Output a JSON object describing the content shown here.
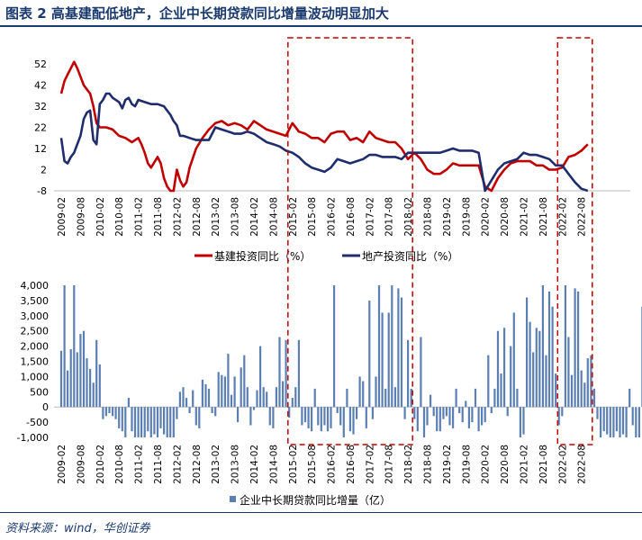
{
  "title": "图表 2   高基建配低地产，企业中长期贷款同比增量波动明显加大",
  "source": "资料来源：wind，华创证券",
  "colors": {
    "title": "#1a3a6e",
    "infra": "#c00000",
    "property": "#1f2d6e",
    "bars": "#5b7fb2",
    "highlight_box": "#c00000"
  },
  "chart_data": [
    {
      "type": "line",
      "title": "",
      "ylim": [
        -8,
        58
      ],
      "yticks": [
        -8,
        2,
        12,
        22,
        32,
        42,
        52
      ],
      "x_tick_labels": [
        "2009-02",
        "2009-08",
        "2010-02",
        "2010-08",
        "2011-02",
        "2011-08",
        "2012-02",
        "2012-08",
        "2013-02",
        "2013-08",
        "2014-02",
        "2014-08",
        "2015-02",
        "2015-08",
        "2016-02",
        "2016-08",
        "2017-02",
        "2017-08",
        "2018-02",
        "2018-08",
        "2019-02",
        "2019-08",
        "2020-02",
        "2020-08",
        "2021-02",
        "2021-08",
        "2022-02",
        "2022-08"
      ],
      "highlight_ranges": [
        [
          "2015-02",
          "2018-02"
        ],
        [
          "2022-02",
          "2022-10"
        ]
      ],
      "series": [
        {
          "name": "基建投资同比（%）",
          "points": [
            [
              "2009-02",
              38
            ],
            [
              "2009-03",
              44
            ],
            [
              "2009-04",
              47
            ],
            [
              "2009-05",
              50
            ],
            [
              "2009-06",
              53
            ],
            [
              "2009-07",
              50
            ],
            [
              "2009-08",
              46
            ],
            [
              "2009-09",
              42
            ],
            [
              "2009-10",
              40
            ],
            [
              "2009-11",
              38
            ],
            [
              "2009-12",
              32
            ],
            [
              "2010-01",
              24
            ],
            [
              "2010-02",
              22
            ],
            [
              "2010-04",
              22
            ],
            [
              "2010-06",
              21
            ],
            [
              "2010-08",
              18
            ],
            [
              "2010-10",
              17
            ],
            [
              "2010-12",
              15
            ],
            [
              "2011-02",
              17
            ],
            [
              "2011-03",
              14
            ],
            [
              "2011-04",
              10
            ],
            [
              "2011-05",
              5
            ],
            [
              "2011-06",
              3
            ],
            [
              "2011-08",
              8
            ],
            [
              "2011-09",
              5
            ],
            [
              "2011-10",
              -2
            ],
            [
              "2011-11",
              -6
            ],
            [
              "2011-12",
              -8
            ],
            [
              "2012-01",
              -8
            ],
            [
              "2012-02",
              2
            ],
            [
              "2012-03",
              -3
            ],
            [
              "2012-04",
              -6
            ],
            [
              "2012-05",
              -4
            ],
            [
              "2012-06",
              3
            ],
            [
              "2012-08",
              12
            ],
            [
              "2012-10",
              17
            ],
            [
              "2012-12",
              21
            ],
            [
              "2013-02",
              24
            ],
            [
              "2013-04",
              25
            ],
            [
              "2013-06",
              23
            ],
            [
              "2013-08",
              24
            ],
            [
              "2013-10",
              23
            ],
            [
              "2013-12",
              21
            ],
            [
              "2014-02",
              25
            ],
            [
              "2014-04",
              23
            ],
            [
              "2014-06",
              21
            ],
            [
              "2014-08",
              20
            ],
            [
              "2014-10",
              19
            ],
            [
              "2014-12",
              18
            ],
            [
              "2015-02",
              24
            ],
            [
              "2015-04",
              20
            ],
            [
              "2015-06",
              19
            ],
            [
              "2015-08",
              17
            ],
            [
              "2015-10",
              17
            ],
            [
              "2015-12",
              15
            ],
            [
              "2016-02",
              19
            ],
            [
              "2016-04",
              20
            ],
            [
              "2016-06",
              20
            ],
            [
              "2016-08",
              16
            ],
            [
              "2016-10",
              17
            ],
            [
              "2016-12",
              15
            ],
            [
              "2017-02",
              20
            ],
            [
              "2017-04",
              17
            ],
            [
              "2017-06",
              16
            ],
            [
              "2017-08",
              15
            ],
            [
              "2017-10",
              15
            ],
            [
              "2017-12",
              12
            ],
            [
              "2018-02",
              7
            ],
            [
              "2018-04",
              10
            ],
            [
              "2018-06",
              7
            ],
            [
              "2018-08",
              2
            ],
            [
              "2018-10",
              0
            ],
            [
              "2018-12",
              0
            ],
            [
              "2019-02",
              2
            ],
            [
              "2019-04",
              5
            ],
            [
              "2019-06",
              4
            ],
            [
              "2019-08",
              4
            ],
            [
              "2019-10",
              4
            ],
            [
              "2019-12",
              4
            ],
            [
              "2020-02",
              -6
            ],
            [
              "2020-04",
              -8
            ],
            [
              "2020-06",
              -2
            ],
            [
              "2020-08",
              2
            ],
            [
              "2020-10",
              5
            ],
            [
              "2020-12",
              6
            ],
            [
              "2021-02",
              6
            ],
            [
              "2021-04",
              6
            ],
            [
              "2021-06",
              4
            ],
            [
              "2021-08",
              4
            ],
            [
              "2021-10",
              2
            ],
            [
              "2021-12",
              2
            ],
            [
              "2022-02",
              3
            ],
            [
              "2022-04",
              8
            ],
            [
              "2022-06",
              9
            ],
            [
              "2022-08",
              11
            ],
            [
              "2022-10",
              14
            ]
          ]
        },
        {
          "name": "地产投资同比（%）",
          "points": [
            [
              "2009-02",
              17
            ],
            [
              "2009-03",
              6
            ],
            [
              "2009-04",
              5
            ],
            [
              "2009-05",
              8
            ],
            [
              "2009-06",
              10
            ],
            [
              "2009-07",
              14
            ],
            [
              "2009-08",
              18
            ],
            [
              "2009-09",
              26
            ],
            [
              "2009-10",
              29
            ],
            [
              "2009-11",
              30
            ],
            [
              "2009-12",
              16
            ],
            [
              "2010-01",
              14
            ],
            [
              "2010-02",
              33
            ],
            [
              "2010-03",
              35
            ],
            [
              "2010-04",
              38
            ],
            [
              "2010-05",
              38
            ],
            [
              "2010-06",
              36
            ],
            [
              "2010-08",
              34
            ],
            [
              "2010-09",
              31
            ],
            [
              "2010-10",
              35
            ],
            [
              "2010-11",
              36
            ],
            [
              "2010-12",
              33
            ],
            [
              "2011-01",
              32
            ],
            [
              "2011-02",
              35
            ],
            [
              "2011-04",
              34
            ],
            [
              "2011-06",
              33
            ],
            [
              "2011-08",
              33
            ],
            [
              "2011-10",
              32
            ],
            [
              "2011-12",
              28
            ],
            [
              "2012-01",
              25
            ],
            [
              "2012-02",
              23
            ],
            [
              "2012-03",
              18
            ],
            [
              "2012-04",
              18
            ],
            [
              "2012-06",
              17
            ],
            [
              "2012-08",
              16
            ],
            [
              "2012-10",
              16
            ],
            [
              "2012-12",
              16
            ],
            [
              "2013-02",
              22
            ],
            [
              "2013-04",
              21
            ],
            [
              "2013-06",
              20
            ],
            [
              "2013-08",
              19
            ],
            [
              "2013-10",
              19
            ],
            [
              "2013-12",
              20
            ],
            [
              "2014-02",
              19
            ],
            [
              "2014-04",
              17
            ],
            [
              "2014-06",
              15
            ],
            [
              "2014-08",
              14
            ],
            [
              "2014-10",
              13
            ],
            [
              "2014-12",
              11
            ],
            [
              "2015-02",
              10
            ],
            [
              "2015-04",
              8
            ],
            [
              "2015-06",
              5
            ],
            [
              "2015-08",
              3
            ],
            [
              "2015-10",
              2
            ],
            [
              "2015-12",
              1
            ],
            [
              "2016-02",
              3
            ],
            [
              "2016-04",
              7
            ],
            [
              "2016-06",
              6
            ],
            [
              "2016-08",
              5
            ],
            [
              "2016-10",
              6
            ],
            [
              "2016-12",
              7
            ],
            [
              "2017-02",
              9
            ],
            [
              "2017-04",
              9
            ],
            [
              "2017-06",
              8
            ],
            [
              "2017-08",
              8
            ],
            [
              "2017-10",
              8
            ],
            [
              "2017-12",
              7
            ],
            [
              "2018-02",
              10
            ],
            [
              "2018-04",
              10
            ],
            [
              "2018-06",
              10
            ],
            [
              "2018-08",
              10
            ],
            [
              "2018-10",
              10
            ],
            [
              "2018-12",
              10
            ],
            [
              "2019-02",
              11
            ],
            [
              "2019-04",
              12
            ],
            [
              "2019-06",
              11
            ],
            [
              "2019-08",
              11
            ],
            [
              "2019-10",
              11
            ],
            [
              "2019-12",
              10
            ],
            [
              "2020-02",
              -8
            ],
            [
              "2020-04",
              -3
            ],
            [
              "2020-06",
              2
            ],
            [
              "2020-08",
              5
            ],
            [
              "2020-10",
              6
            ],
            [
              "2020-12",
              7
            ],
            [
              "2021-02",
              10
            ],
            [
              "2021-04",
              9
            ],
            [
              "2021-06",
              9
            ],
            [
              "2021-08",
              8
            ],
            [
              "2021-10",
              7
            ],
            [
              "2021-12",
              4
            ],
            [
              "2022-02",
              4
            ],
            [
              "2022-04",
              0
            ],
            [
              "2022-06",
              -4
            ],
            [
              "2022-08",
              -7
            ],
            [
              "2022-10",
              -8
            ]
          ]
        }
      ]
    },
    {
      "type": "bar",
      "title": "",
      "ylim": [
        -1000,
        4000
      ],
      "yticks": [
        -1000,
        -500,
        0,
        500,
        1000,
        1500,
        2000,
        2500,
        3000,
        3500,
        4000
      ],
      "ytick_labels": [
        "-1,000",
        "-500",
        "0",
        "500",
        "1,000",
        "1,500",
        "2,000",
        "2,500",
        "3,000",
        "3,500",
        "4,000"
      ],
      "x_tick_labels": [
        "2009-02",
        "2009-08",
        "2010-02",
        "2010-08",
        "2011-02",
        "2011-08",
        "2012-02",
        "2012-08",
        "2013-02",
        "2013-08",
        "2014-02",
        "2014-08",
        "2015-02",
        "2015-08",
        "2016-02",
        "2016-08",
        "2017-02",
        "2017-08",
        "2018-02",
        "2018-08",
        "2019-02",
        "2019-08",
        "2020-02",
        "2020-08",
        "2021-02",
        "2021-08",
        "2022-02",
        "2022-08"
      ],
      "highlight_ranges": [
        [
          "2015-02",
          "2018-02"
        ],
        [
          "2022-02",
          "2022-10"
        ]
      ],
      "series": [
        {
          "name": "企业中长期贷款同比增量（亿）",
          "start": "2009-02",
          "values": [
            1850,
            4000,
            1200,
            1900,
            4000,
            1800,
            2400,
            2500,
            1600,
            1250,
            800,
            2200,
            1400,
            -400,
            -300,
            -200,
            -300,
            -400,
            -700,
            -800,
            -1000,
            300,
            -800,
            -1000,
            -1000,
            -1000,
            -1000,
            -800,
            -1000,
            -900,
            -1000,
            -700,
            -900,
            -1000,
            -1000,
            -1000,
            -400,
            500,
            650,
            300,
            -200,
            550,
            -600,
            -700,
            900,
            750,
            600,
            -200,
            -300,
            1150,
            1050,
            1000,
            1750,
            400,
            1000,
            -500,
            1300,
            1700,
            650,
            -600,
            -100,
            550,
            2000,
            650,
            500,
            -600,
            -700,
            650,
            2300,
            850,
            2200,
            -350,
            300,
            650,
            2200,
            -600,
            -500,
            -700,
            -800,
            600,
            -600,
            -800,
            -600,
            -800,
            -700,
            4000,
            -200,
            -600,
            -1000,
            600,
            -800,
            -900,
            -400,
            1000,
            850,
            -700,
            3500,
            -400,
            1000,
            4000,
            3100,
            600,
            3100,
            4000,
            650,
            3900,
            3600,
            -400,
            2200,
            600,
            -400,
            -800,
            2300,
            -1000,
            -600,
            400,
            -300,
            -800,
            -800,
            -400,
            -300,
            -600,
            -700,
            600,
            -200,
            -500,
            200,
            -700,
            -500,
            600,
            -800,
            -600,
            -500,
            1700,
            -200,
            600,
            2500,
            1100,
            2600,
            -300,
            2000,
            3100,
            600,
            -1000,
            -900,
            3600,
            2800,
            1800,
            2600,
            2500,
            4000,
            1700,
            3800,
            3300,
            1100,
            -600,
            -300,
            4000,
            2300,
            1050,
            3900,
            3800,
            1200,
            800,
            1600,
            1700,
            600,
            -400,
            -1000,
            -800,
            -900,
            -1000,
            -1000,
            -800,
            -1000,
            -900,
            -1000,
            600,
            -600,
            -1000,
            -1000,
            3300,
            4000,
            600,
            2100,
            2500,
            -700,
            1500,
            -300,
            -1000
          ]
        }
      ]
    }
  ]
}
